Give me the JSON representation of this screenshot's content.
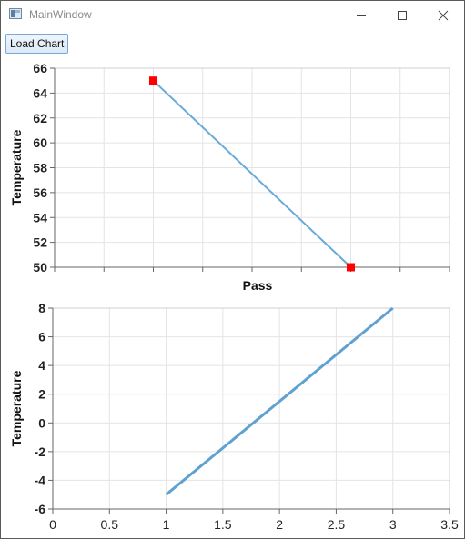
{
  "window": {
    "title": "MainWindow",
    "minimize_icon": "minimize-icon",
    "maximize_icon": "maximize-icon",
    "close_icon": "close-icon"
  },
  "toolbar": {
    "load_chart_label": "Load Chart"
  },
  "chart_data": [
    {
      "type": "line",
      "xlabel": "Pass",
      "ylabel": "Temperature",
      "xlim": [
        0,
        4
      ],
      "ylim": [
        50,
        66
      ],
      "yticks": [
        50,
        52,
        54,
        56,
        58,
        60,
        62,
        64,
        66
      ],
      "xticks": [
        0,
        0.5,
        1,
        1.5,
        2,
        2.5,
        3,
        3.5,
        4
      ],
      "show_x_tick_labels": false,
      "grid": true,
      "series": [
        {
          "x": [
            1,
            3
          ],
          "y": [
            65,
            50
          ],
          "color": "#6aaad8",
          "marker": "square",
          "marker_color": "#ff0000"
        }
      ]
    },
    {
      "type": "line",
      "xlabel": "",
      "ylabel": "Temperature",
      "xlim": [
        0,
        3.5
      ],
      "ylim": [
        -6,
        8
      ],
      "yticks": [
        -6,
        -4,
        -2,
        0,
        2,
        4,
        6,
        8
      ],
      "xticks": [
        0,
        0.5,
        1,
        1.5,
        2,
        2.5,
        3,
        3.5
      ],
      "xtick_labels": [
        "0",
        "0.5",
        "1",
        "1.5",
        "2",
        "2.5",
        "3",
        "3.5"
      ],
      "grid": true,
      "series": [
        {
          "x": [
            1,
            3
          ],
          "y": [
            -5,
            8
          ],
          "color": "#5fa2d2"
        }
      ]
    }
  ]
}
